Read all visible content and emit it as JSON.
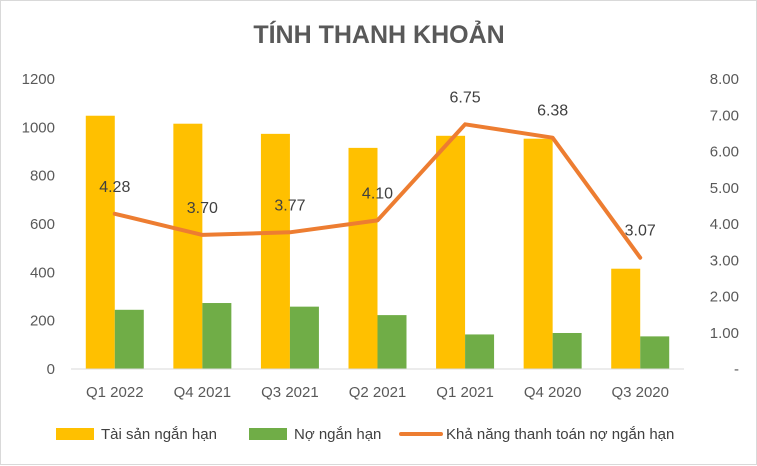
{
  "chart_data": {
    "type": "bar",
    "title": "TÍNH THANH KHOẢN",
    "categories": [
      "Q1 2022",
      "Q4 2021",
      "Q3 2021",
      "Q2 2021",
      "Q1 2021",
      "Q4 2020",
      "Q3 2020"
    ],
    "series": [
      {
        "name": "Tài sản ngắn hạn",
        "type": "bar",
        "axis": "left",
        "color": "#FFC000",
        "values": [
          1048,
          1015,
          973,
          915,
          965,
          953,
          415
        ]
      },
      {
        "name": "Nợ ngắn hạn",
        "type": "bar",
        "axis": "left",
        "color": "#70AD47",
        "values": [
          245,
          273,
          258,
          223,
          143,
          149,
          135
        ]
      },
      {
        "name": "Khả năng thanh toán nợ ngắn hạn",
        "type": "line",
        "axis": "right",
        "color": "#ED7D31",
        "values": [
          4.28,
          3.7,
          3.77,
          4.1,
          6.75,
          6.38,
          3.07
        ],
        "labels": [
          "4.28",
          "3.70",
          "3.77",
          "4.10",
          "6.75",
          "6.38",
          "3.07"
        ]
      }
    ],
    "y_left": {
      "min": 0,
      "max": 1200,
      "step": 200,
      "tick_labels": [
        "0",
        "200",
        "400",
        "600",
        "800",
        "1000",
        "1200"
      ]
    },
    "y_right": {
      "min": 0,
      "max": 8,
      "step": 1,
      "tick_labels": [
        "-",
        "1.00",
        "2.00",
        "3.00",
        "4.00",
        "5.00",
        "6.00",
        "7.00",
        "8.00"
      ]
    },
    "grid": false,
    "legend_position": "bottom"
  }
}
